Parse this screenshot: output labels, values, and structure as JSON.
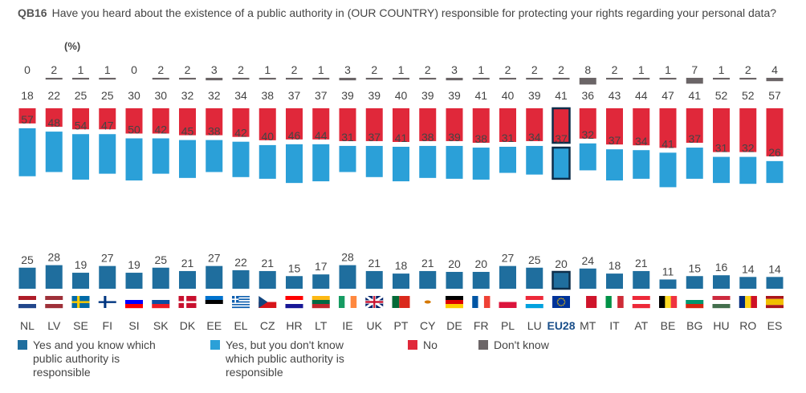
{
  "question": {
    "code": "QB16",
    "text": "Have you heard about the existence of a public authority in (OUR COUNTRY) responsible for protecting your rights regarding your personal data?",
    "unit": "(%)"
  },
  "colors": {
    "yes_know": "#1f6e9e",
    "yes_dont_know": "#2ba0d8",
    "no": "#e0283a",
    "dont_know": "#6b6567",
    "highlight_border": "#0e2e4a"
  },
  "legend": [
    {
      "key": "yes_know",
      "label": "Yes and you know which\npublic authority is\nresponsible"
    },
    {
      "key": "yes_dont_know",
      "label": "Yes, but you don't know\nwhich public authority is\nresponsible"
    },
    {
      "key": "no",
      "label": "No"
    },
    {
      "key": "dont_know",
      "label": "Don't know"
    }
  ],
  "chart_data": {
    "type": "bar",
    "highlight": "EU28",
    "categories": [
      "NL",
      "LV",
      "SE",
      "FI",
      "SI",
      "SK",
      "DK",
      "EE",
      "EL",
      "CZ",
      "HR",
      "LT",
      "IE",
      "UK",
      "PT",
      "CY",
      "DE",
      "FR",
      "PL",
      "LU",
      "EU28",
      "MT",
      "IT",
      "AT",
      "BE",
      "BG",
      "HU",
      "RO",
      "ES"
    ],
    "flags": [
      {
        "type": "h",
        "colors": [
          "#ae1c28",
          "#ffffff",
          "#21468b"
        ]
      },
      {
        "type": "h",
        "colors": [
          "#9e3039",
          "#ffffff",
          "#9e3039"
        ]
      },
      {
        "type": "nordic",
        "colors": [
          "#006aa7",
          "#fecc00"
        ]
      },
      {
        "type": "nordic",
        "colors": [
          "#ffffff",
          "#003580"
        ]
      },
      {
        "type": "h",
        "colors": [
          "#ffffff",
          "#0000ff",
          "#ff0000"
        ]
      },
      {
        "type": "h",
        "colors": [
          "#ffffff",
          "#0b4ea2",
          "#ee1c25"
        ]
      },
      {
        "type": "nordic",
        "colors": [
          "#c8102e",
          "#ffffff"
        ]
      },
      {
        "type": "h",
        "colors": [
          "#0072ce",
          "#000000",
          "#ffffff"
        ]
      },
      {
        "type": "stripes",
        "colors": [
          "#0d5eaf",
          "#ffffff"
        ]
      },
      {
        "type": "triangle",
        "colors": [
          "#ffffff",
          "#d7141a",
          "#11457e"
        ]
      },
      {
        "type": "h",
        "colors": [
          "#ff0000",
          "#ffffff",
          "#171796"
        ]
      },
      {
        "type": "h",
        "colors": [
          "#fdb913",
          "#006a44",
          "#c1272d"
        ]
      },
      {
        "type": "v",
        "colors": [
          "#169b62",
          "#ffffff",
          "#ff883e"
        ]
      },
      {
        "type": "uk",
        "colors": [
          "#012169",
          "#ffffff",
          "#c8102e"
        ]
      },
      {
        "type": "v2",
        "colors": [
          "#046a38",
          "#da291c"
        ]
      },
      {
        "type": "plain",
        "colors": [
          "#ffffff",
          "#d57800"
        ]
      },
      {
        "type": "h",
        "colors": [
          "#000000",
          "#dd0000",
          "#ffce00"
        ]
      },
      {
        "type": "v",
        "colors": [
          "#0055a4",
          "#ffffff",
          "#ef4135"
        ]
      },
      {
        "type": "h2",
        "colors": [
          "#ffffff",
          "#dc143c"
        ]
      },
      {
        "type": "h",
        "colors": [
          "#ed2939",
          "#ffffff",
          "#00a1de"
        ]
      },
      {
        "type": "eu",
        "colors": [
          "#003399",
          "#ffcc00"
        ]
      },
      {
        "type": "v2",
        "colors": [
          "#ffffff",
          "#cf142b"
        ]
      },
      {
        "type": "v",
        "colors": [
          "#009246",
          "#ffffff",
          "#ce2b37"
        ]
      },
      {
        "type": "h",
        "colors": [
          "#ed2939",
          "#ffffff",
          "#ed2939"
        ]
      },
      {
        "type": "v",
        "colors": [
          "#000000",
          "#fdda24",
          "#ef3340"
        ]
      },
      {
        "type": "h",
        "colors": [
          "#ffffff",
          "#00966e",
          "#d62612"
        ]
      },
      {
        "type": "h",
        "colors": [
          "#cd2a3e",
          "#ffffff",
          "#436f4d"
        ]
      },
      {
        "type": "v",
        "colors": [
          "#002b7f",
          "#fcd116",
          "#ce1126"
        ]
      },
      {
        "type": "es",
        "colors": [
          "#aa151b",
          "#f1bf00",
          "#aa151b"
        ]
      }
    ],
    "series": [
      {
        "key": "yes_know",
        "name": "Yes and you know which public authority is responsible",
        "values": [
          25,
          28,
          19,
          27,
          19,
          25,
          21,
          27,
          22,
          21,
          15,
          17,
          28,
          21,
          18,
          21,
          20,
          20,
          27,
          25,
          20,
          24,
          18,
          21,
          11,
          15,
          16,
          14,
          14
        ]
      },
      {
        "key": "yes_dont_know",
        "name": "Yes, but you don't know which public authority is responsible",
        "values": [
          57,
          48,
          54,
          47,
          50,
          42,
          45,
          38,
          42,
          40,
          46,
          44,
          31,
          37,
          41,
          38,
          39,
          38,
          31,
          34,
          37,
          32,
          37,
          34,
          41,
          37,
          31,
          32,
          26
        ]
      },
      {
        "key": "no",
        "name": "No",
        "values": [
          18,
          22,
          25,
          25,
          30,
          30,
          32,
          32,
          34,
          38,
          37,
          37,
          39,
          39,
          40,
          39,
          39,
          41,
          40,
          39,
          41,
          36,
          43,
          44,
          47,
          41,
          52,
          52,
          57
        ]
      },
      {
        "key": "dont_know",
        "name": "Don't know",
        "values": [
          0,
          2,
          1,
          1,
          0,
          2,
          2,
          3,
          2,
          1,
          2,
          1,
          3,
          2,
          1,
          2,
          3,
          1,
          2,
          2,
          2,
          8,
          2,
          1,
          1,
          7,
          1,
          2,
          4
        ]
      }
    ]
  }
}
